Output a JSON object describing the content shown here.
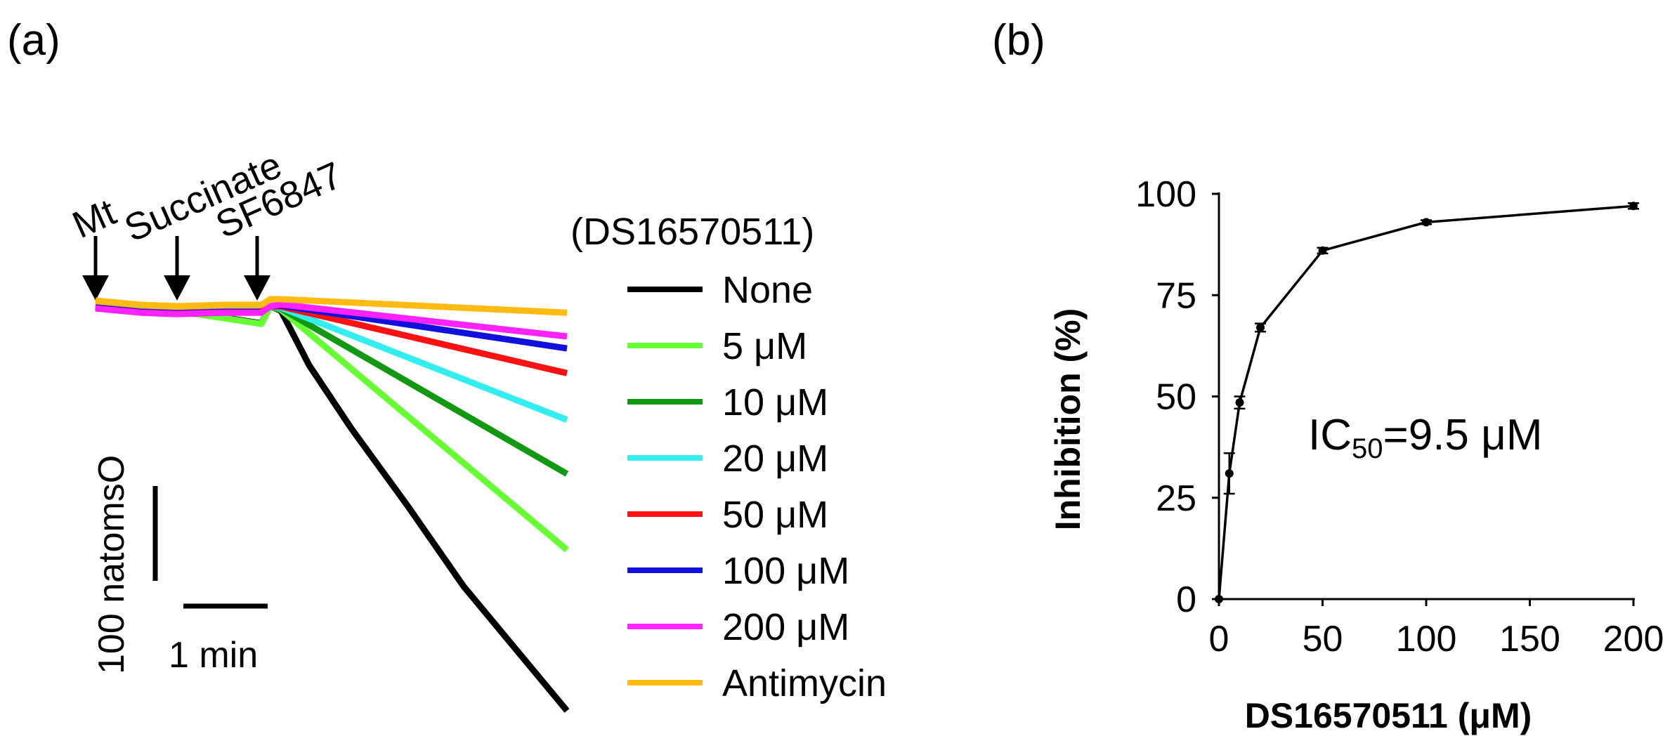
{
  "chart_data": [
    {
      "type": "line",
      "panel_label": "(a)",
      "description_markers": [
        "Mt",
        "Succinate",
        "SF6847"
      ],
      "legend_title": "(DS16570511)",
      "scale_bars": {
        "vertical_label": "100 natomsO",
        "horizontal_label": "1 min"
      },
      "series": [
        {
          "name": "None",
          "color": "#000000",
          "slope": -1.0
        },
        {
          "name": "5 μM",
          "color": "#66FF33",
          "slope": -0.63
        },
        {
          "name": "10 μM",
          "color": "#119911",
          "slope": -0.42
        },
        {
          "name": "20 μM",
          "color": "#33EEEE",
          "slope": -0.27
        },
        {
          "name": "50 μM",
          "color": "#FF1111",
          "slope": -0.14
        },
        {
          "name": "100 μM",
          "color": "#1111DD",
          "slope": -0.07
        },
        {
          "name": "200 μM",
          "color": "#FF22FF",
          "slope": -0.035
        },
        {
          "name": "Antimycin",
          "color": "#FFBB11",
          "slope": -0.01
        }
      ]
    },
    {
      "type": "line",
      "panel_label": "(b)",
      "xlabel": "DS16570511 (μM)",
      "ylabel": "Inhibition (%)",
      "xlim": [
        0,
        200
      ],
      "ylim": [
        0,
        100
      ],
      "xticks": [
        0,
        50,
        100,
        150,
        200
      ],
      "yticks": [
        0,
        25,
        50,
        75,
        100
      ],
      "annotation": {
        "prefix": "IC",
        "subscript": "50",
        "suffix": "=9.5 μM"
      },
      "series": [
        {
          "name": "Inhibition",
          "x": [
            0,
            5,
            10,
            20,
            50,
            100,
            200
          ],
          "y": [
            0,
            31,
            48.5,
            67,
            86,
            93,
            97
          ],
          "err": [
            0,
            5,
            1.5,
            1,
            0.7,
            0.5,
            0.7
          ]
        }
      ]
    }
  ]
}
